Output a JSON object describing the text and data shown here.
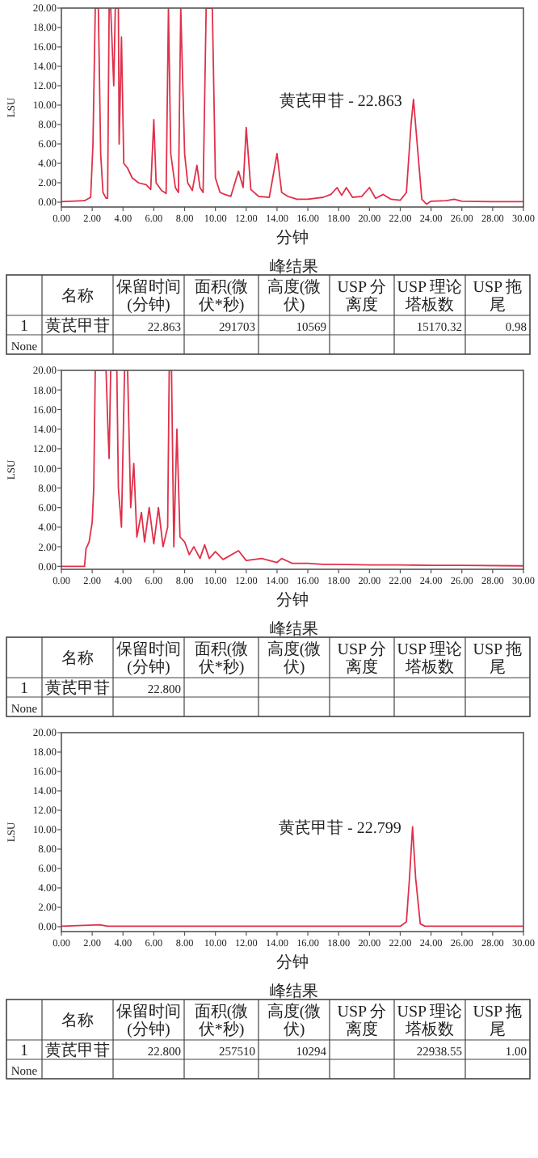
{
  "chart_data": [
    {
      "type": "line",
      "xlabel": "分钟",
      "ylabel": "LSU",
      "color": "#e0304a",
      "xlim": [
        0,
        30
      ],
      "ylim": [
        -0.5,
        20
      ],
      "xticks": [
        {
          "value": 0,
          "label": "0.00"
        },
        {
          "value": 2,
          "label": "2.00"
        },
        {
          "value": 4,
          "label": "4.00"
        },
        {
          "value": 6,
          "label": "6.00"
        },
        {
          "value": 8,
          "label": "8.00"
        },
        {
          "value": 10,
          "label": "10.00"
        },
        {
          "value": 12,
          "label": "12.00"
        },
        {
          "value": 14,
          "label": "14.00"
        },
        {
          "value": 16,
          "label": "16.00"
        },
        {
          "value": 18,
          "label": "18.00"
        },
        {
          "value": 20,
          "label": "20.00"
        },
        {
          "value": 22,
          "label": "22.00"
        },
        {
          "value": 24,
          "label": "24.00"
        },
        {
          "value": 26,
          "label": "26.00"
        },
        {
          "value": 28,
          "label": "28.00"
        },
        {
          "value": 30,
          "label": "30.00"
        }
      ],
      "yticks": [
        {
          "value": 0,
          "label": "0.00"
        },
        {
          "value": 2,
          "label": "2.00"
        },
        {
          "value": 4,
          "label": "4.00"
        },
        {
          "value": 6,
          "label": "6.00"
        },
        {
          "value": 8,
          "label": "8.00"
        },
        {
          "value": 10,
          "label": "10.00"
        },
        {
          "value": 12,
          "label": "12.00"
        },
        {
          "value": 14,
          "label": "14.00"
        },
        {
          "value": 16,
          "label": "16.00"
        },
        {
          "value": 18,
          "label": "18.00"
        },
        {
          "value": 20,
          "label": "20.00"
        }
      ],
      "x": [
        0,
        1.5,
        1.9,
        2.05,
        2.2,
        2.4,
        2.55,
        2.7,
        2.9,
        3.0,
        3.1,
        3.2,
        3.4,
        3.5,
        3.7,
        3.75,
        3.9,
        4.05,
        4.3,
        4.6,
        5.0,
        5.5,
        5.8,
        6.0,
        6.15,
        6.5,
        6.8,
        6.95,
        7.1,
        7.4,
        7.6,
        7.75,
        7.9,
        8.0,
        8.2,
        8.5,
        8.8,
        9.0,
        9.2,
        9.4,
        9.8,
        10.0,
        10.3,
        10.6,
        11.0,
        11.5,
        11.8,
        12.0,
        12.3,
        12.8,
        13.5,
        14.0,
        14.3,
        14.7,
        15.3,
        16,
        17,
        17.5,
        17.9,
        18.2,
        18.5,
        18.9,
        19.5,
        20.0,
        20.4,
        20.9,
        21.4,
        22.0,
        22.4,
        22.7,
        22.86,
        23.1,
        23.4,
        23.7,
        24,
        25,
        25.5,
        26,
        28,
        30
      ],
      "values": [
        0.05,
        0.15,
        0.5,
        6,
        20,
        20,
        5,
        1,
        0.4,
        0.4,
        20,
        20,
        12,
        20,
        20,
        6,
        17,
        4,
        3.5,
        2.5,
        2,
        1.8,
        1.3,
        8.5,
        2,
        1.2,
        0.9,
        20,
        5,
        1.5,
        1,
        20,
        11,
        5,
        2,
        1.2,
        3.8,
        1.5,
        1,
        20,
        20,
        2.5,
        1,
        0.8,
        0.6,
        3.2,
        1.5,
        7.7,
        1.3,
        0.6,
        0.5,
        5,
        1,
        0.6,
        0.3,
        0.3,
        0.5,
        0.8,
        1.5,
        0.7,
        1.5,
        0.5,
        0.6,
        1.5,
        0.4,
        0.8,
        0.3,
        0.2,
        1,
        8,
        10.6,
        6,
        0.3,
        -0.2,
        0.1,
        0.15,
        0.3,
        0.1,
        0.05,
        0.05
      ],
      "annotations": [
        {
          "text": "黄芪甲苷 - 22.863",
          "x": 22.86,
          "y": 10.6
        }
      ]
    },
    {
      "type": "other",
      "title": "峰结果",
      "categories": [
        null,
        "名称",
        "保留时间(分钟)",
        "面积(微伏*秒)",
        "高度(微伏)",
        "USP 分离度",
        "USP 理论塔板数",
        "USP 拖尾"
      ],
      "cell_labels": [
        [
          "1",
          "黄芪甲苷",
          "22.863",
          "291703",
          "10569",
          null,
          "15170.32",
          "0.98"
        ],
        [
          "None",
          null,
          null,
          null,
          null,
          null,
          null,
          null
        ]
      ]
    },
    {
      "type": "line",
      "xlabel": "分钟",
      "ylabel": "LSU",
      "color": "#e0304a",
      "xlim": [
        0,
        30
      ],
      "ylim": [
        -0.3,
        20
      ],
      "xticks": [
        {
          "value": 0,
          "label": "0.00"
        },
        {
          "value": 2,
          "label": "2.00"
        },
        {
          "value": 4,
          "label": "4.00"
        },
        {
          "value": 6,
          "label": "6.00"
        },
        {
          "value": 8,
          "label": "8.00"
        },
        {
          "value": 10,
          "label": "10.00"
        },
        {
          "value": 12,
          "label": "12.00"
        },
        {
          "value": 14,
          "label": "14.00"
        },
        {
          "value": 16,
          "label": "16.00"
        },
        {
          "value": 18,
          "label": "18.00"
        },
        {
          "value": 20,
          "label": "20.00"
        },
        {
          "value": 22,
          "label": "22.00"
        },
        {
          "value": 24,
          "label": "24.00"
        },
        {
          "value": 26,
          "label": "26.00"
        },
        {
          "value": 28,
          "label": "28.00"
        },
        {
          "value": 30,
          "label": "30.00"
        }
      ],
      "yticks": [
        {
          "value": 0,
          "label": "0.00"
        },
        {
          "value": 2,
          "label": "2.00"
        },
        {
          "value": 4,
          "label": "4.00"
        },
        {
          "value": 6,
          "label": "6.00"
        },
        {
          "value": 8,
          "label": "8.00"
        },
        {
          "value": 10,
          "label": "10.00"
        },
        {
          "value": 12,
          "label": "12.00"
        },
        {
          "value": 14,
          "label": "14.00"
        },
        {
          "value": 16,
          "label": "16.00"
        },
        {
          "value": 18,
          "label": "18.00"
        },
        {
          "value": 20,
          "label": "20.00"
        }
      ],
      "x": [
        0,
        1.5,
        1.6,
        1.8,
        2.0,
        2.1,
        2.2,
        2.9,
        3.0,
        3.1,
        3.2,
        3.6,
        3.7,
        3.9,
        4.1,
        4.3,
        4.5,
        4.7,
        4.9,
        5.2,
        5.4,
        5.7,
        6.0,
        6.3,
        6.6,
        6.9,
        7.0,
        7.15,
        7.3,
        7.5,
        7.7,
        8.0,
        8.3,
        8.6,
        9.0,
        9.3,
        9.6,
        10,
        10.5,
        11.5,
        12,
        13,
        14,
        14.3,
        15,
        16,
        17,
        18,
        20,
        22,
        24,
        26,
        30
      ],
      "values": [
        0,
        0,
        1.8,
        2.5,
        4.5,
        8,
        20,
        20,
        15,
        11,
        20,
        20,
        8,
        4,
        20,
        20,
        6,
        10.5,
        3,
        5.5,
        2.5,
        6,
        2.3,
        6,
        2,
        4,
        20,
        20,
        2,
        14,
        3,
        2.5,
        1.2,
        2,
        0.8,
        2.2,
        0.8,
        1.5,
        0.7,
        1.6,
        0.6,
        0.8,
        0.4,
        0.8,
        0.3,
        0.3,
        0.2,
        0.2,
        0.15,
        0.15,
        0.1,
        0.1,
        0.05
      ]
    },
    {
      "type": "other",
      "title": "峰结果",
      "categories": [
        null,
        "名称",
        "保留时间(分钟)",
        "面积(微伏*秒)",
        "高度(微伏)",
        "USP 分离度",
        "USP 理论塔板数",
        "USP 拖尾"
      ],
      "cell_labels": [
        [
          "1",
          "黄芪甲苷",
          "22.800",
          null,
          null,
          null,
          null,
          null
        ],
        [
          "None",
          null,
          null,
          null,
          null,
          null,
          null,
          null
        ]
      ]
    },
    {
      "type": "line",
      "xlabel": "分钟",
      "ylabel": "LSU",
      "color": "#e0304a",
      "xlim": [
        0,
        30
      ],
      "ylim": [
        -0.5,
        20
      ],
      "xticks": [
        {
          "value": 0,
          "label": "0.00"
        },
        {
          "value": 2,
          "label": "2.00"
        },
        {
          "value": 4,
          "label": "4.00"
        },
        {
          "value": 6,
          "label": "6.00"
        },
        {
          "value": 8,
          "label": "8.00"
        },
        {
          "value": 10,
          "label": "10.00"
        },
        {
          "value": 12,
          "label": "12.00"
        },
        {
          "value": 14,
          "label": "14.00"
        },
        {
          "value": 16,
          "label": "16.00"
        },
        {
          "value": 18,
          "label": "18.00"
        },
        {
          "value": 20,
          "label": "20.00"
        },
        {
          "value": 22,
          "label": "22.00"
        },
        {
          "value": 24,
          "label": "24.00"
        },
        {
          "value": 26,
          "label": "26.00"
        },
        {
          "value": 28,
          "label": "28.00"
        },
        {
          "value": 30,
          "label": "30.00"
        }
      ],
      "yticks": [
        {
          "value": 0,
          "label": "0.00"
        },
        {
          "value": 2,
          "label": "2.00"
        },
        {
          "value": 4,
          "label": "4.00"
        },
        {
          "value": 6,
          "label": "6.00"
        },
        {
          "value": 8,
          "label": "8.00"
        },
        {
          "value": 10,
          "label": "10.00"
        },
        {
          "value": 12,
          "label": "12.00"
        },
        {
          "value": 14,
          "label": "14.00"
        },
        {
          "value": 16,
          "label": "16.00"
        },
        {
          "value": 18,
          "label": "18.00"
        },
        {
          "value": 20,
          "label": "20.00"
        }
      ],
      "x": [
        0,
        2.5,
        3,
        22,
        22.4,
        22.6,
        22.8,
        23.0,
        23.3,
        23.6,
        30
      ],
      "values": [
        0.05,
        0.2,
        0.05,
        0.05,
        0.5,
        5,
        10.3,
        5,
        0.3,
        0.05,
        0.05
      ],
      "annotations": [
        {
          "text": "黄芪甲苷 - 22.799",
          "x": 22.8,
          "y": 10.3
        }
      ]
    },
    {
      "type": "other",
      "title": "峰结果",
      "categories": [
        null,
        "名称",
        "保留时间(分钟)",
        "面积(微伏*秒)",
        "高度(微伏)",
        "USP 分离度",
        "USP 理论塔板数",
        "USP 拖尾"
      ],
      "cell_labels": [
        [
          "1",
          "黄芪甲苷",
          "22.800",
          "257510",
          "10294",
          null,
          "22938.55",
          "1.00"
        ],
        [
          "None",
          null,
          null,
          null,
          null,
          null,
          null,
          null
        ]
      ]
    }
  ]
}
